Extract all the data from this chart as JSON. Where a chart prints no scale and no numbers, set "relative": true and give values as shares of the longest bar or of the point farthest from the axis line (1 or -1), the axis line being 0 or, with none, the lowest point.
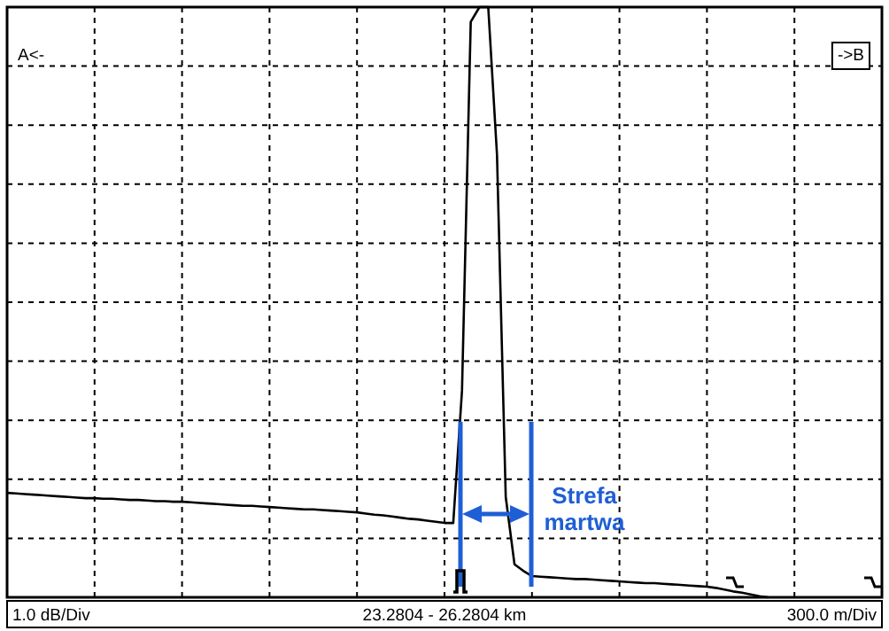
{
  "chart_data": {
    "type": "line",
    "relative": true,
    "grid": true,
    "categories": [
      null,
      null,
      null,
      null,
      null,
      null,
      null,
      null,
      null,
      null,
      null,
      null,
      null,
      null,
      null,
      null,
      null,
      null,
      null,
      null,
      null,
      null,
      null,
      null,
      null,
      null,
      null,
      null,
      null,
      null,
      null,
      null,
      null,
      null,
      null,
      null,
      null,
      null,
      null,
      null,
      null,
      null,
      null,
      null,
      null,
      null,
      null,
      null,
      null,
      null,
      null,
      null,
      null,
      null,
      null,
      null,
      null,
      null,
      null,
      null,
      null,
      null,
      null,
      null,
      null,
      null,
      null,
      null,
      null,
      null,
      null,
      null,
      null,
      null,
      null,
      null,
      null,
      null,
      null,
      null,
      null,
      null,
      null,
      null,
      null,
      null,
      null,
      null,
      null,
      null,
      null,
      null,
      null,
      null,
      null,
      null,
      null,
      null,
      null,
      null,
      null
    ],
    "series": [
      {
        "color": "#000000",
        "values": [
          0.177,
          0.176,
          0.175,
          0.174,
          0.173,
          0.172,
          0.171,
          0.17,
          0.169,
          0.168,
          0.168,
          0.167,
          0.167,
          0.166,
          0.165,
          0.165,
          0.164,
          0.163,
          0.163,
          0.162,
          0.162,
          0.161,
          0.16,
          0.159,
          0.158,
          0.157,
          0.156,
          0.155,
          0.155,
          0.154,
          0.153,
          0.152,
          0.151,
          0.15,
          0.149,
          0.149,
          0.148,
          0.147,
          0.146,
          0.145,
          0.144,
          0.142,
          0.14,
          0.139,
          0.137,
          0.135,
          0.133,
          0.132,
          0.13,
          0.128,
          0.126,
          0.126,
          0.35,
          0.975,
          1,
          1,
          0.75,
          0.17,
          0.056,
          0.045,
          0.036,
          0.035,
          0.034,
          0.033,
          0.032,
          0.031,
          0.031,
          0.03,
          0.029,
          0.028,
          0.027,
          0.026,
          0.025,
          0.024,
          0.024,
          0.023,
          0.022,
          0.021,
          0.02,
          0.019,
          0.018,
          0.016,
          0.013,
          0.01,
          0.008,
          0.005,
          0.002,
          0,
          null,
          null,
          null,
          null,
          null,
          null,
          null,
          null,
          null,
          null,
          null,
          null,
          null
        ]
      }
    ],
    "annotations": [
      "A<-",
      "->B",
      "Strefa martwa",
      "1.0 dB/Div",
      "23.2804 - 26.2804 km",
      "300.0 m/Div"
    ]
  }
}
